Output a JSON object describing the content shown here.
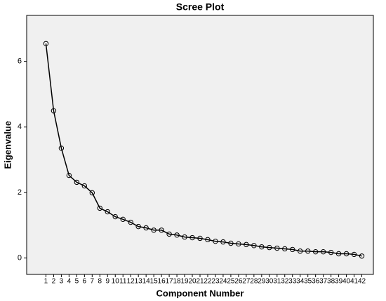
{
  "chart_data": {
    "type": "line",
    "title": "Scree Plot",
    "x_label": "Component Number",
    "y_label": "Eigenvalue",
    "x": [
      1,
      2,
      3,
      4,
      5,
      6,
      7,
      8,
      9,
      10,
      11,
      12,
      13,
      14,
      15,
      16,
      17,
      18,
      19,
      20,
      21,
      22,
      23,
      24,
      25,
      26,
      27,
      28,
      29,
      30,
      31,
      32,
      33,
      34,
      35,
      36,
      37,
      38,
      39,
      40,
      41,
      42
    ],
    "series": [
      {
        "name": "Eigenvalue",
        "color": "#000000",
        "values": [
          6.54,
          4.49,
          3.35,
          2.52,
          2.31,
          2.2,
          1.99,
          1.52,
          1.41,
          1.26,
          1.18,
          1.09,
          0.96,
          0.92,
          0.85,
          0.85,
          0.73,
          0.7,
          0.64,
          0.62,
          0.6,
          0.56,
          0.51,
          0.49,
          0.45,
          0.43,
          0.41,
          0.38,
          0.34,
          0.32,
          0.3,
          0.28,
          0.26,
          0.21,
          0.21,
          0.19,
          0.19,
          0.17,
          0.13,
          0.13,
          0.11,
          0.06
        ]
      }
    ],
    "xlim": [
      -1.5,
      43.5
    ],
    "xticks": [
      1,
      2,
      3,
      4,
      5,
      6,
      7,
      8,
      9,
      10,
      11,
      12,
      13,
      14,
      15,
      16,
      17,
      18,
      19,
      20,
      21,
      22,
      23,
      24,
      25,
      26,
      27,
      28,
      29,
      30,
      31,
      32,
      33,
      34,
      35,
      36,
      37,
      38,
      39,
      40,
      41,
      42
    ],
    "ylim": [
      -0.5,
      7.4
    ],
    "yticks": [
      0,
      2,
      4,
      6
    ],
    "background": "#f0f0f0"
  }
}
